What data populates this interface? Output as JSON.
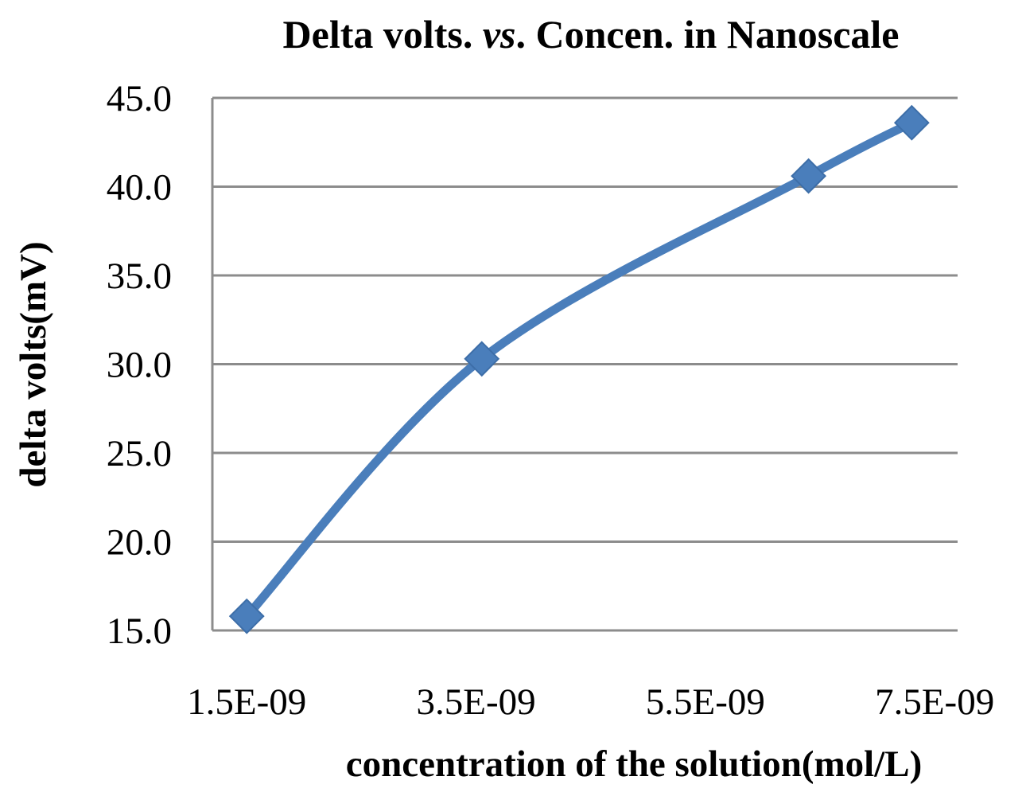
{
  "chart_data": {
    "type": "line",
    "title_parts": [
      "Delta volts. ",
      "vs",
      ". Concen. in Nanoscale"
    ],
    "xlabel": "concentration of the solution(mol/L)",
    "ylabel": "delta volts(mV)",
    "x_ticks": [
      "1.5E-09",
      "3.5E-09",
      "5.5E-09",
      "7.5E-09"
    ],
    "x_tick_values": [
      1.5e-09,
      3.5e-09,
      5.5e-09,
      7.5e-09
    ],
    "y_ticks": [
      "15.0",
      "20.0",
      "25.0",
      "30.0",
      "35.0",
      "40.0",
      "45.0"
    ],
    "y_tick_values": [
      15,
      20,
      25,
      30,
      35,
      40,
      45
    ],
    "xlim": [
      1.2e-09,
      7.7e-09
    ],
    "ylim": [
      15,
      45
    ],
    "grid": "horizontal",
    "legend": "none",
    "series": [
      {
        "x": [
          1.5e-09,
          3.55e-09,
          6.4e-09,
          7.3e-09
        ],
        "y": [
          15.8,
          30.3,
          40.6,
          43.6
        ],
        "color": "#4A7EBB",
        "marker": "diamond",
        "smooth": true
      }
    ]
  }
}
